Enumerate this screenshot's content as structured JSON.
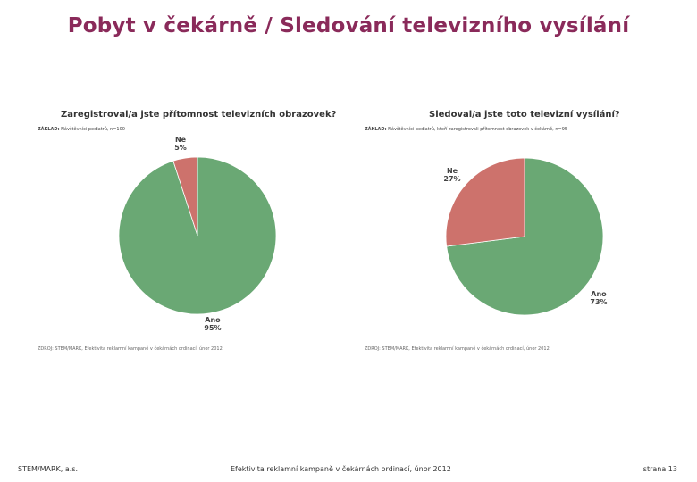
{
  "slide": {
    "title": "Pobyt v čekárně / Sledování televizního vysílání"
  },
  "chart_data": [
    {
      "type": "pie",
      "title": "Zaregistroval/a jste přítomnost televizních obrazovek?",
      "base_label": "ZÁKLAD:",
      "base_text": "Návštěvníci pediatrů, n=100",
      "source_text": "ZDROJ: STEM/MARK, Efektivita reklamní kampaně v čekárnách ordinací, únor 2012",
      "categories": [
        "Ano",
        "Ne"
      ],
      "values": [
        95,
        5
      ],
      "value_labels": [
        "95%",
        "5%"
      ],
      "colors": [
        "#6aa874",
        "#cd726c"
      ]
    },
    {
      "type": "pie",
      "title": "Sledoval/a jste toto televizní vysílání?",
      "base_label": "ZÁKLAD:",
      "base_text": "Návštěvníci pediatrů, kteří zaregistrovali přítomnost obrazovek v čekárně, n=95",
      "source_text": "ZDROJ: STEM/MARK, Efektivita reklamní kampaně v čekárnách ordinací, únor 2012",
      "categories": [
        "Ano",
        "Ne"
      ],
      "values": [
        73,
        27
      ],
      "value_labels": [
        "73%",
        "27%"
      ],
      "colors": [
        "#6aa874",
        "#cd726c"
      ]
    }
  ],
  "footer": {
    "left": "STEM/MARK, a.s.",
    "center": "Efektivita reklamní kampaně v čekárnách ordinací, únor 2012",
    "right": "strana 13"
  }
}
